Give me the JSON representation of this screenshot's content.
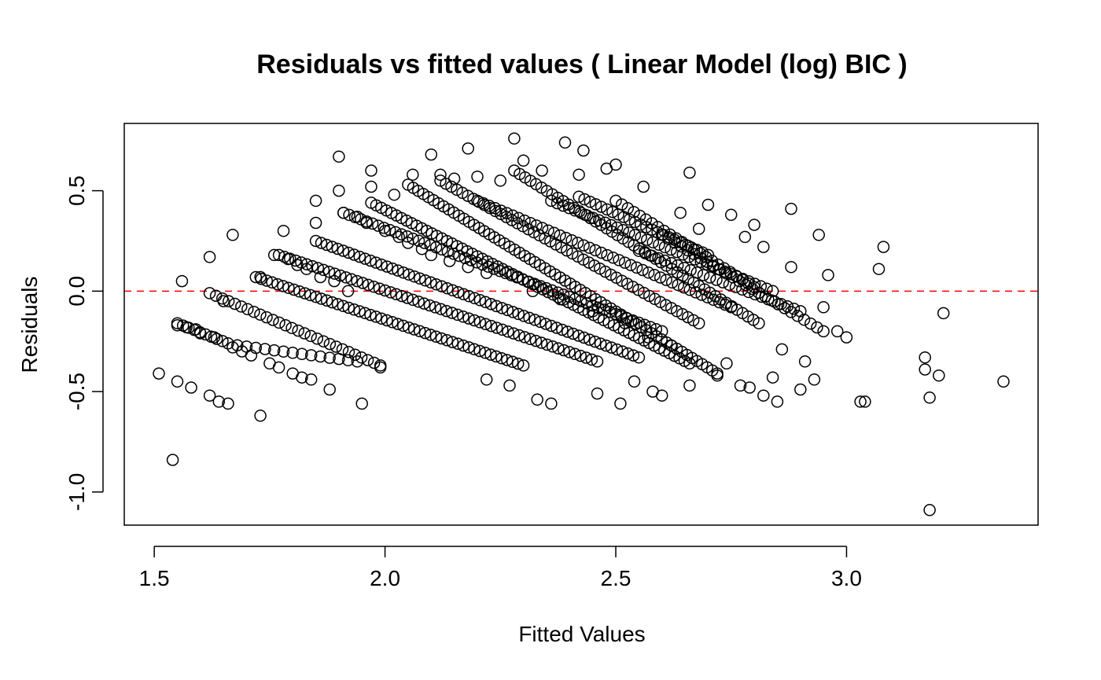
{
  "chart_data": {
    "type": "scatter",
    "title": "Residuals vs fitted values ( Linear Model (log) BIC  )",
    "xlabel": "Fitted Values",
    "ylabel": "Residuals",
    "xlim": [
      1.435,
      3.415
    ],
    "ylim": [
      -1.165,
      0.835
    ],
    "x_ticks": [
      {
        "value": 1.5,
        "label": "1.5"
      },
      {
        "value": 2.0,
        "label": "2.0"
      },
      {
        "value": 2.5,
        "label": "2.5"
      },
      {
        "value": 3.0,
        "label": "3.0"
      }
    ],
    "y_ticks": [
      {
        "value": -1.0,
        "label": "-1.0"
      },
      {
        "value": -0.5,
        "label": "-0.5"
      },
      {
        "value": 0.0,
        "label": "0.0"
      },
      {
        "value": 0.5,
        "label": "0.5"
      }
    ],
    "reference_line": {
      "y": 0,
      "color": "#ff0000",
      "style": "dashed"
    },
    "grid": false,
    "legend": "none",
    "marker": "open-circle",
    "marker_color": "#000000",
    "series": [
      {
        "points": [
          [
            1.51,
            -0.41
          ],
          [
            1.54,
            -0.84
          ],
          [
            1.55,
            -0.45
          ],
          [
            1.55,
            -0.17
          ],
          [
            1.56,
            0.05
          ],
          [
            1.57,
            -0.18
          ],
          [
            1.58,
            -0.48
          ],
          [
            1.59,
            -0.19
          ],
          [
            1.6,
            -0.21
          ],
          [
            1.62,
            0.17
          ],
          [
            1.62,
            -0.52
          ],
          [
            1.63,
            -0.23
          ],
          [
            1.64,
            -0.55
          ],
          [
            1.65,
            -0.05
          ],
          [
            1.66,
            -0.56
          ],
          [
            1.67,
            0.28
          ],
          [
            1.67,
            -0.28
          ],
          [
            1.69,
            -0.3
          ],
          [
            1.71,
            -0.32
          ],
          [
            1.73,
            -0.62
          ],
          [
            1.73,
            0.07
          ],
          [
            1.75,
            -0.36
          ],
          [
            1.76,
            0.18
          ],
          [
            1.77,
            -0.38
          ],
          [
            1.78,
            0.3
          ],
          [
            1.79,
            0.16
          ],
          [
            1.8,
            -0.41
          ],
          [
            1.81,
            0.13
          ],
          [
            1.82,
            -0.43
          ],
          [
            1.83,
            0.11
          ],
          [
            1.84,
            -0.44
          ],
          [
            1.85,
            0.45
          ],
          [
            1.85,
            0.34
          ],
          [
            1.86,
            0.07
          ],
          [
            1.88,
            -0.49
          ],
          [
            1.89,
            0.05
          ],
          [
            1.9,
            0.5
          ],
          [
            1.9,
            0.67
          ],
          [
            1.91,
            0.39
          ],
          [
            1.92,
            0.0
          ],
          [
            1.94,
            0.37
          ],
          [
            1.95,
            -0.56
          ],
          [
            1.96,
            0.34
          ],
          [
            1.97,
            0.6
          ],
          [
            1.97,
            0.52
          ],
          [
            1.99,
            -0.38
          ],
          [
            2.0,
            0.3
          ],
          [
            2.02,
            0.48
          ],
          [
            2.03,
            0.27
          ],
          [
            2.05,
            0.24
          ],
          [
            2.06,
            0.58
          ],
          [
            2.08,
            0.21
          ],
          [
            2.1,
            0.68
          ],
          [
            2.1,
            0.18
          ],
          [
            2.12,
            0.58
          ],
          [
            2.14,
            0.15
          ],
          [
            2.15,
            0.56
          ],
          [
            2.18,
            0.71
          ],
          [
            2.18,
            0.12
          ],
          [
            2.2,
            0.57
          ],
          [
            2.22,
            -0.44
          ],
          [
            2.22,
            0.09
          ],
          [
            2.25,
            0.55
          ],
          [
            2.27,
            -0.47
          ],
          [
            2.28,
            0.76
          ],
          [
            2.3,
            0.65
          ],
          [
            2.32,
            0.0
          ],
          [
            2.33,
            -0.54
          ],
          [
            2.34,
            0.6
          ],
          [
            2.36,
            -0.56
          ],
          [
            2.38,
            -0.04
          ],
          [
            2.39,
            0.74
          ],
          [
            2.42,
            0.58
          ],
          [
            2.43,
            0.7
          ],
          [
            2.45,
            -0.1
          ],
          [
            2.46,
            -0.51
          ],
          [
            2.48,
            0.61
          ],
          [
            2.5,
            0.63
          ],
          [
            2.51,
            -0.56
          ],
          [
            2.52,
            -0.16
          ],
          [
            2.54,
            -0.45
          ],
          [
            2.56,
            0.52
          ],
          [
            2.57,
            -0.23
          ],
          [
            2.58,
            -0.5
          ],
          [
            2.6,
            -0.52
          ],
          [
            2.62,
            -0.27
          ],
          [
            2.64,
            0.39
          ],
          [
            2.66,
            0.59
          ],
          [
            2.66,
            -0.47
          ],
          [
            2.68,
            0.31
          ],
          [
            2.7,
            0.43
          ],
          [
            2.72,
            -0.42
          ],
          [
            2.74,
            -0.36
          ],
          [
            2.75,
            0.38
          ],
          [
            2.77,
            -0.47
          ],
          [
            2.78,
            0.27
          ],
          [
            2.79,
            -0.48
          ],
          [
            2.8,
            0.33
          ],
          [
            2.82,
            -0.52
          ],
          [
            2.82,
            0.22
          ],
          [
            2.84,
            -0.43
          ],
          [
            2.85,
            -0.55
          ],
          [
            2.86,
            -0.29
          ],
          [
            2.88,
            0.41
          ],
          [
            2.88,
            0.12
          ],
          [
            2.9,
            -0.49
          ],
          [
            2.91,
            -0.35
          ],
          [
            2.93,
            -0.44
          ],
          [
            2.94,
            0.28
          ],
          [
            2.95,
            -0.08
          ],
          [
            2.96,
            0.08
          ],
          [
            2.98,
            -0.2
          ],
          [
            3.0,
            -0.23
          ],
          [
            3.03,
            -0.55
          ],
          [
            3.04,
            -0.55
          ],
          [
            3.07,
            0.11
          ],
          [
            3.08,
            0.22
          ],
          [
            3.17,
            -0.33
          ],
          [
            3.17,
            -0.39
          ],
          [
            3.18,
            -0.53
          ],
          [
            3.18,
            -1.09
          ],
          [
            3.2,
            -0.42
          ],
          [
            3.21,
            -0.11
          ],
          [
            3.34,
            -0.45
          ]
        ],
        "bands": [
          {
            "from": [
              1.55,
              -0.16
            ],
            "to": [
              1.66,
              -0.26
            ],
            "count": 10
          },
          {
            "from": [
              1.62,
              -0.01
            ],
            "to": [
              1.99,
              -0.37
            ],
            "count": 28
          },
          {
            "from": [
              1.68,
              -0.27
            ],
            "to": [
              1.94,
              -0.35
            ],
            "count": 14
          },
          {
            "from": [
              1.72,
              0.07
            ],
            "to": [
              2.3,
              -0.37
            ],
            "count": 50
          },
          {
            "from": [
              1.77,
              0.18
            ],
            "to": [
              2.46,
              -0.35
            ],
            "count": 58
          },
          {
            "from": [
              1.85,
              0.25
            ],
            "to": [
              2.55,
              -0.33
            ],
            "count": 60
          },
          {
            "from": [
              1.91,
              0.39
            ],
            "to": [
              2.6,
              -0.2
            ],
            "count": 56
          },
          {
            "from": [
              1.97,
              0.44
            ],
            "to": [
              2.66,
              -0.36
            ],
            "count": 64
          },
          {
            "from": [
              2.05,
              0.53
            ],
            "to": [
              2.72,
              -0.41
            ],
            "count": 62
          },
          {
            "from": [
              2.12,
              0.55
            ],
            "to": [
              2.68,
              -0.16
            ],
            "count": 48
          },
          {
            "from": [
              2.2,
              0.45
            ],
            "to": [
              2.75,
              -0.08
            ],
            "count": 44
          },
          {
            "from": [
              2.28,
              0.6
            ],
            "to": [
              2.81,
              -0.16
            ],
            "count": 46
          },
          {
            "from": [
              2.36,
              0.45
            ],
            "to": [
              2.84,
              0.0
            ],
            "count": 38
          },
          {
            "from": [
              2.42,
              0.47
            ],
            "to": [
              2.7,
              0.18
            ],
            "count": 24
          },
          {
            "from": [
              2.5,
              0.45
            ],
            "to": [
              2.8,
              0.02
            ],
            "count": 24
          },
          {
            "from": [
              2.55,
              0.2
            ],
            "to": [
              2.9,
              -0.1
            ],
            "count": 26
          },
          {
            "from": [
              2.6,
              0.28
            ],
            "to": [
              2.95,
              -0.2
            ],
            "count": 26
          }
        ]
      }
    ]
  }
}
